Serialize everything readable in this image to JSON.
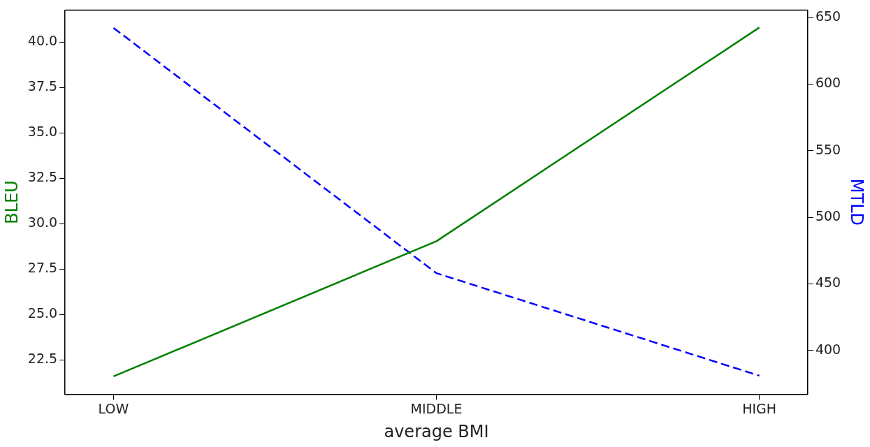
{
  "chart_data": {
    "type": "line",
    "xlabel": "average BMI",
    "ylabel": "BLEU",
    "y2label": "MTLD",
    "categories": [
      "LOW",
      "MIDDLE",
      "HIGH"
    ],
    "ylim": [
      20.62,
      41.76
    ],
    "yticks": [
      22.5,
      {
        "value": 25,
        "label": "25.0"
      },
      27.5,
      {
        "value": 30,
        "label": "30.0"
      },
      32.5,
      {
        "value": 35,
        "label": "35.0"
      },
      37.5,
      {
        "value": 40,
        "label": "40.0"
      }
    ],
    "y2lim": [
      367.1,
      655.6
    ],
    "y2ticks": [
      400,
      450,
      500,
      550,
      600,
      650
    ],
    "series": [
      {
        "color": "#008000",
        "values": [
          21.6,
          29.04,
          40.8
        ],
        "line_style": "solid"
      },
      {
        "color": "#0000ff",
        "values": [
          642.2,
          458,
          381
        ],
        "axis": "y2",
        "line_style": "dashed"
      }
    ],
    "legend": false,
    "grid": false,
    "marker": "none"
  }
}
